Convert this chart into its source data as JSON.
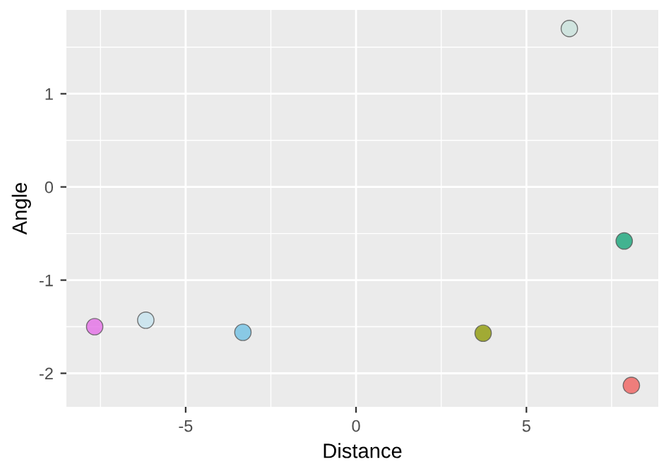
{
  "chart_data": {
    "type": "scatter",
    "xlabel": "Distance",
    "ylabel": "Angle",
    "x": [
      -7.67,
      -6.17,
      -3.32,
      3.73,
      6.26,
      7.87,
      8.08
    ],
    "values": [
      -1.5,
      -1.43,
      -1.56,
      -1.57,
      1.7,
      -0.58,
      -2.13
    ],
    "colors": [
      "#e36ee6",
      "#c6e4ef",
      "#70c1e3",
      "#8f9a06",
      "#c9e2dc",
      "#17a579",
      "#f0625f"
    ],
    "xlim": [
      -8.5,
      8.87
    ],
    "ylim": [
      -2.36,
      1.9
    ],
    "xticks": [
      -5,
      0,
      5
    ],
    "yticks": [
      -2,
      -1,
      0,
      1
    ],
    "grid": true,
    "marker": "circle"
  }
}
